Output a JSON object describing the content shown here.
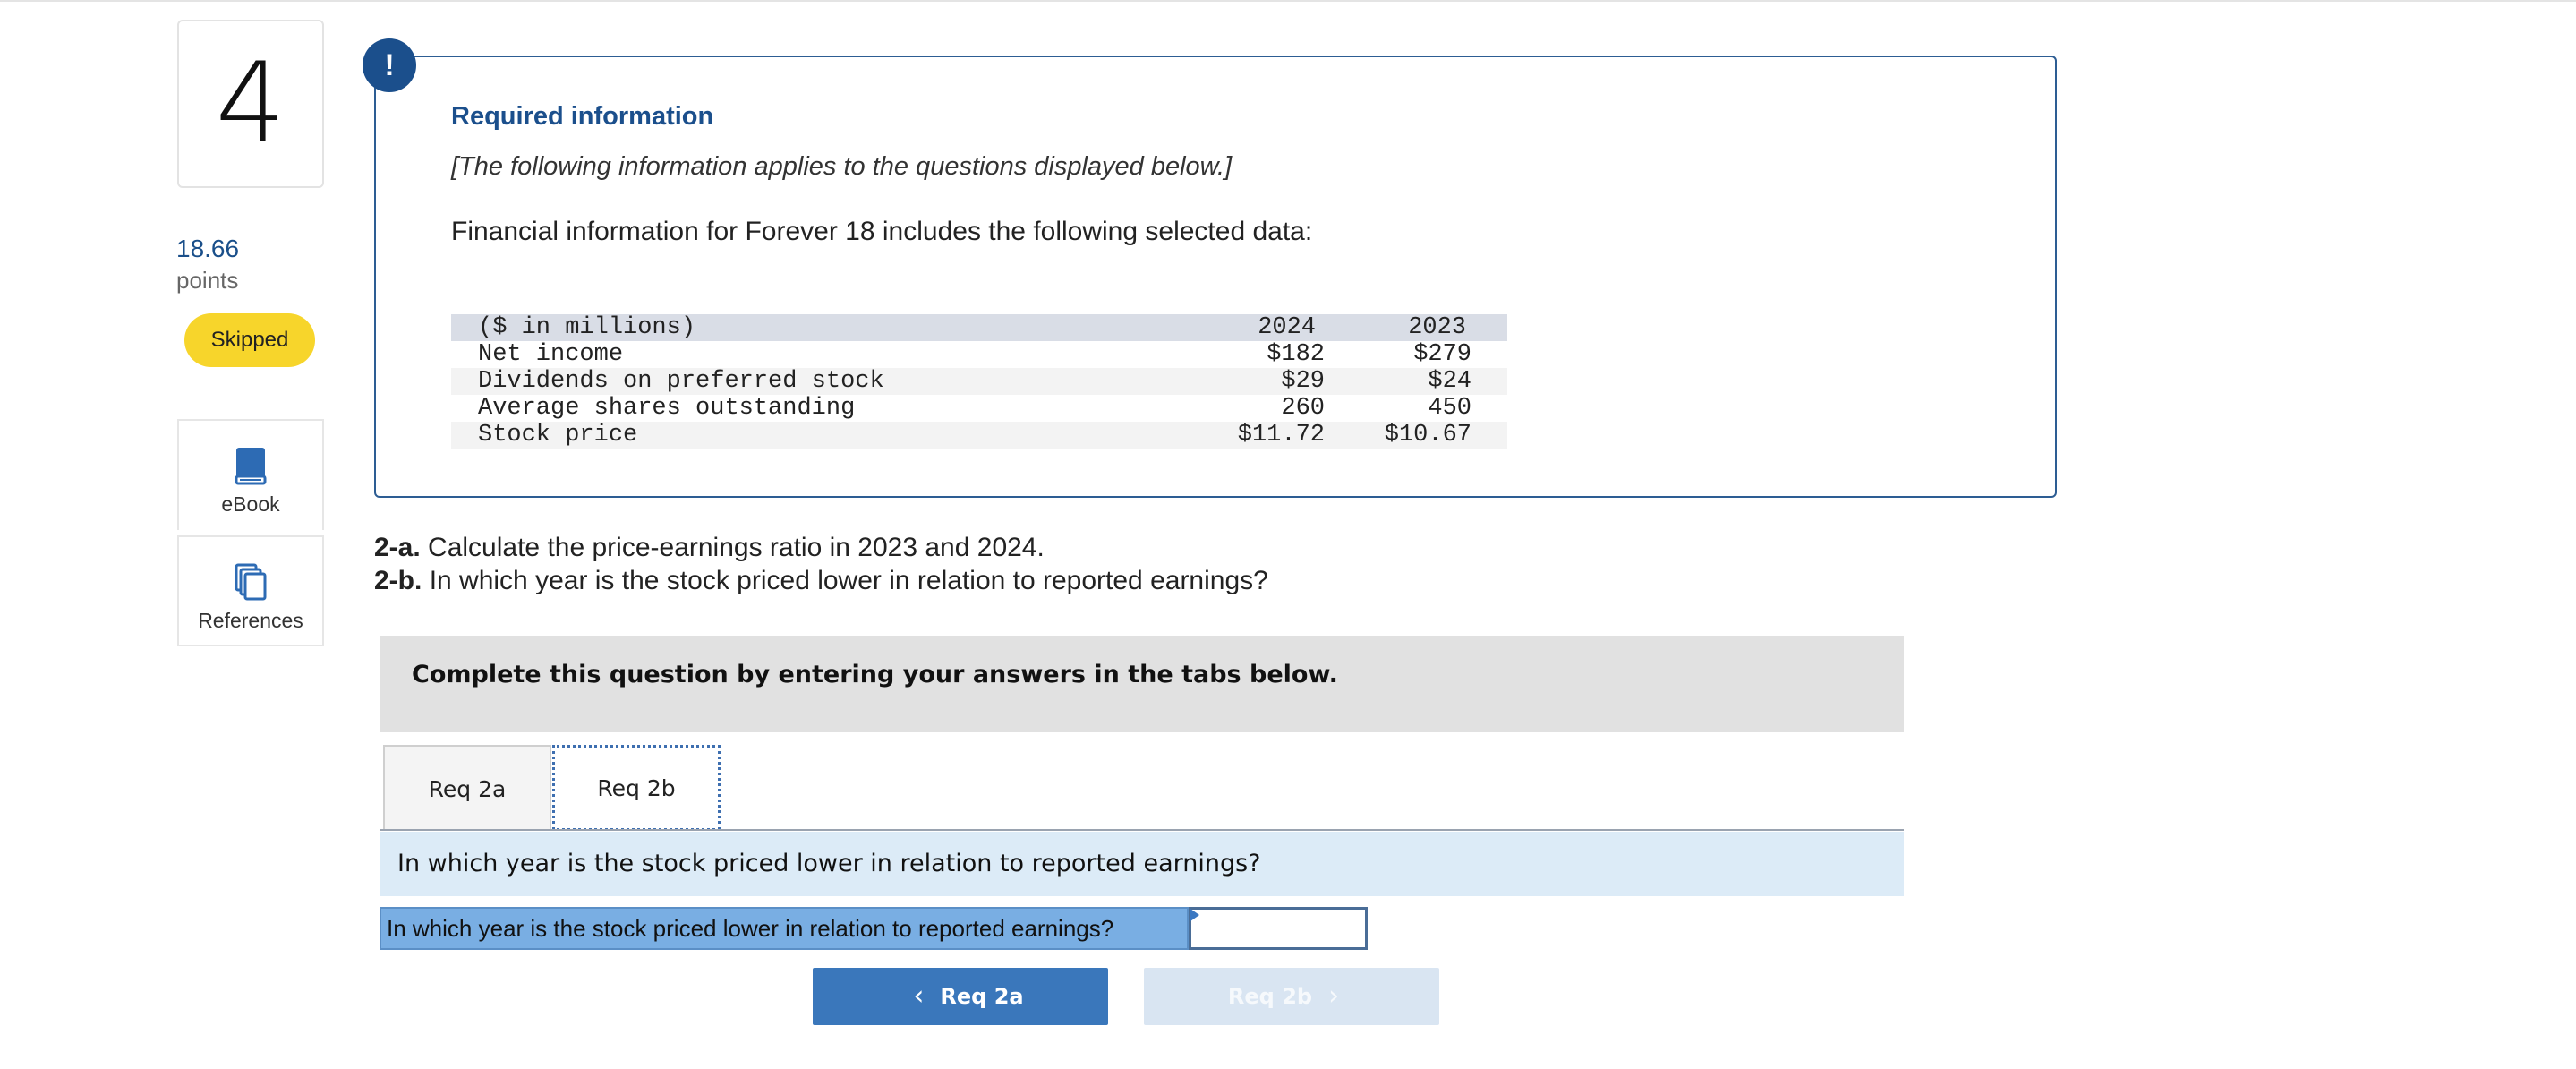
{
  "question": {
    "number": "4",
    "points_value": "18.66",
    "points_label": "points",
    "status": "Skipped"
  },
  "sidebar": {
    "ebook_label": "eBook",
    "references_label": "References"
  },
  "required_info": {
    "badge": "!",
    "title": "Required information",
    "note": "[The following information applies to the questions displayed below.]",
    "intro": "Financial information for Forever 18 includes the following selected data:",
    "table": {
      "header": {
        "label": "($ in millions)",
        "col1": "2024",
        "col2": "2023"
      },
      "rows": [
        {
          "label": "Net income",
          "col1": "$182",
          "col2": "$279"
        },
        {
          "label": "Dividends on preferred stock",
          "col1": "$29",
          "col2": "$24"
        },
        {
          "label": "Average shares outstanding",
          "col1": "260",
          "col2": "450"
        },
        {
          "label": "Stock price",
          "col1": "$11.72",
          "col2": "$10.67"
        }
      ]
    }
  },
  "questions": {
    "q2a_prefix": "2-a.",
    "q2a_text": "Calculate the price-earnings ratio in 2023 and 2024.",
    "q2b_prefix": "2-b.",
    "q2b_text": "In which year is the stock priced lower in relation to reported earnings?"
  },
  "instruction": "Complete this question by entering your answers in the tabs below.",
  "tabs": [
    {
      "label": "Req 2a",
      "active": false
    },
    {
      "label": "Req 2b",
      "active": true
    }
  ],
  "prompt": "In which year is the stock priced lower in relation to reported earnings?",
  "answer": {
    "label": "In which year is the stock priced lower in relation to reported earnings?",
    "value": ""
  },
  "nav": {
    "prev_label": "Req 2a",
    "next_label": "Req 2b"
  },
  "colors": {
    "brand_blue": "#1b4f8c",
    "skipped_badge": "#f7d52b",
    "nav_active": "#3a77bb",
    "nav_disabled": "#d9e5f2",
    "prompt_band": "#dcebf7",
    "answer_label_bg": "#79aee3"
  }
}
